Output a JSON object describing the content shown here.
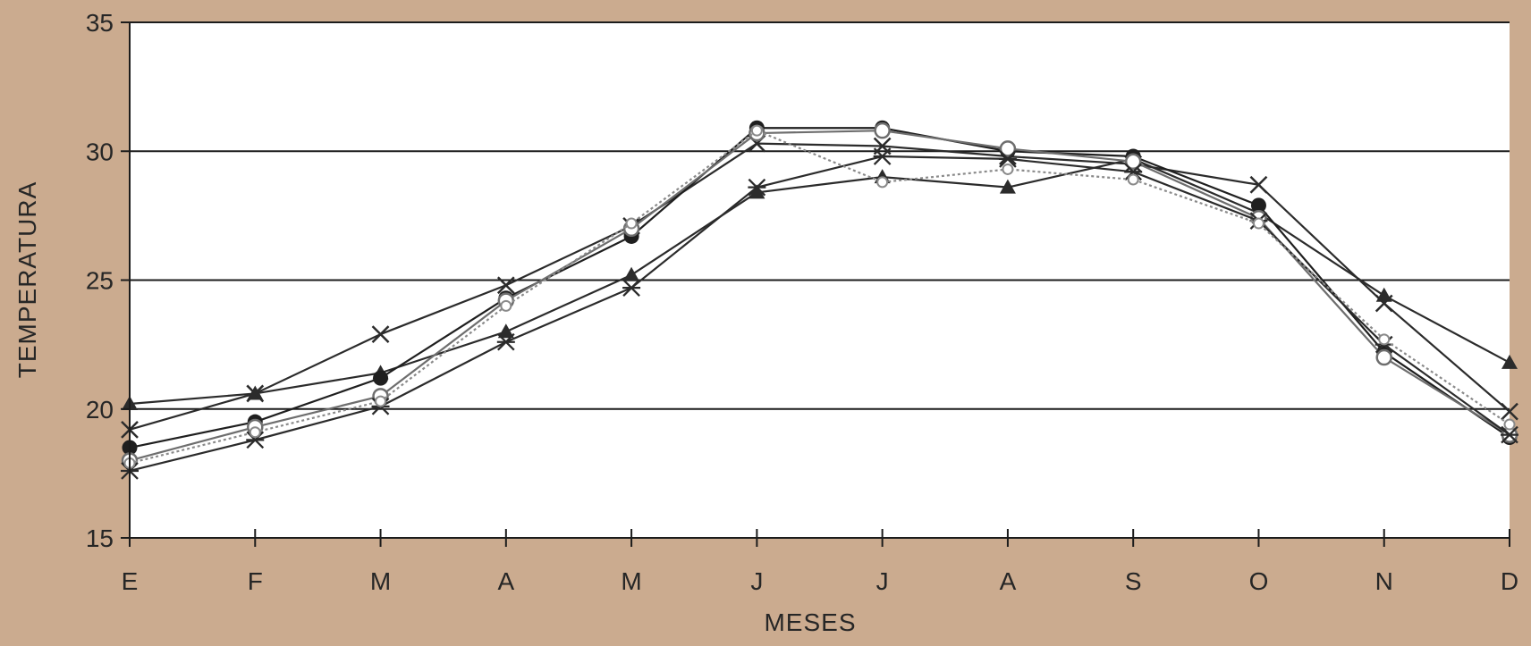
{
  "chart_data": {
    "type": "line",
    "xlabel": "MESES",
    "ylabel": "TEMPERATURA",
    "categories": [
      "E",
      "F",
      "M",
      "A",
      "M",
      "J",
      "J",
      "A",
      "S",
      "O",
      "N",
      "D"
    ],
    "yticks": [
      15,
      20,
      25,
      30,
      35
    ],
    "ylim": [
      15,
      35
    ],
    "grid": "horizontal",
    "legend": "none",
    "colors": {
      "background": "#cbab8f",
      "plot_area": "#ffffff",
      "axis": "#1c1c1c",
      "text": "#262626"
    },
    "series": [
      {
        "marker": "triangle",
        "color": "#2b2b2b",
        "dash": "none",
        "values": [
          20.2,
          20.6,
          21.4,
          23.0,
          25.2,
          28.4,
          29.0,
          28.6,
          29.7,
          27.6,
          24.4,
          21.8
        ]
      },
      {
        "marker": "x",
        "color": "#2b2b2b",
        "dash": "none",
        "values": [
          19.2,
          20.6,
          22.9,
          24.8,
          27.1,
          30.3,
          30.2,
          29.8,
          29.5,
          28.7,
          24.1,
          19.9
        ]
      },
      {
        "marker": "circle",
        "color": "#1f1f1f",
        "dash": "none",
        "values": [
          18.5,
          19.5,
          21.2,
          24.3,
          26.7,
          30.9,
          30.9,
          30.0,
          29.8,
          27.9,
          22.2,
          18.9
        ]
      },
      {
        "marker": "open-circle",
        "color": "#6e6e6e",
        "dash": "none",
        "values": [
          18.0,
          19.3,
          20.5,
          24.2,
          27.0,
          30.7,
          30.8,
          30.1,
          29.6,
          27.4,
          22.0,
          19.0
        ]
      },
      {
        "marker": "star",
        "color": "#2b2b2b",
        "dash": "none",
        "values": [
          17.6,
          18.8,
          20.1,
          22.6,
          24.7,
          28.6,
          29.8,
          29.7,
          29.2,
          27.3,
          22.5,
          19.0
        ]
      },
      {
        "marker": "open-circle-small",
        "color": "#8a8a8a",
        "dash": "dot",
        "values": [
          17.9,
          19.1,
          20.3,
          24.0,
          27.2,
          30.8,
          28.8,
          29.3,
          28.9,
          27.2,
          22.7,
          19.4
        ]
      }
    ]
  }
}
